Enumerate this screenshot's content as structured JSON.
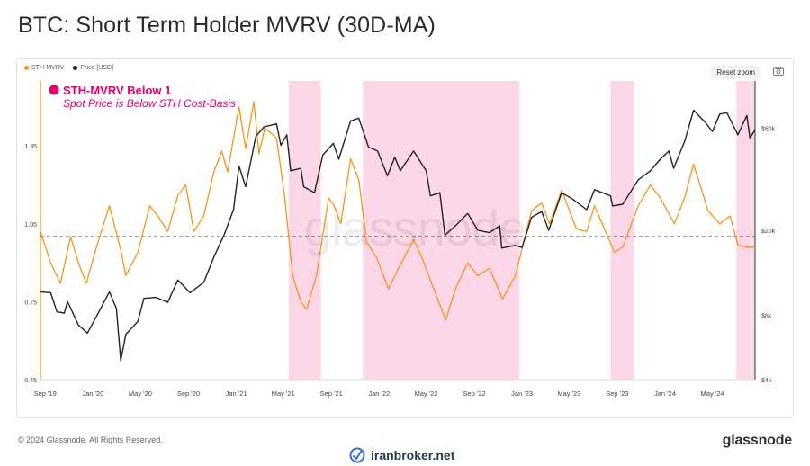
{
  "title": "BTC: Short Term Holder MVRV (30D-MA)",
  "legend": [
    {
      "label": "STH-MVRV",
      "color": "#f7931a"
    },
    {
      "label": "Price [USD]",
      "color": "#222222"
    }
  ],
  "toolbar": {
    "reset_zoom": "Reset zoom"
  },
  "annotation": {
    "title": "STH-MVRV Below 1",
    "subtitle": "Spot Price is Below STH Cost-Basis",
    "color": "#e6006e"
  },
  "watermark": "glassnode",
  "footer": {
    "copyright": "© 2024 Glassnode. All Rights Reserved.",
    "brand": "glassnode",
    "site": "iranbroker.net"
  },
  "chart_data": {
    "type": "line",
    "x_ticks": [
      "Sep '19",
      "Jan '20",
      "May '20",
      "Sep '20",
      "Jan '21",
      "May '21",
      "Sep '21",
      "Jan '22",
      "May '22",
      "Sep '22",
      "Jan '23",
      "May '23",
      "Sep '23",
      "Jan '24",
      "May '24"
    ],
    "x_range": [
      "2019-08-20",
      "2024-08-18"
    ],
    "left_axis": {
      "ticks": [
        0.45,
        0.75,
        1.05,
        1.35
      ],
      "range": [
        0.45,
        1.6
      ]
    },
    "right_axis": {
      "ticks": [
        "$4k",
        "$8k",
        "$20k",
        "$60k"
      ],
      "tick_values": [
        4000,
        8000,
        20000,
        60000
      ],
      "scale": "log",
      "range": [
        4000,
        100000
      ]
    },
    "reference_line": {
      "y": 1.0,
      "style": "dashed"
    },
    "shaded_regions": [
      [
        "2021-05-15",
        "2021-08-05"
      ],
      [
        "2021-11-20",
        "2022-12-25"
      ],
      [
        "2023-08-15",
        "2023-10-15"
      ],
      [
        "2024-07-01",
        "2024-08-18"
      ]
    ],
    "series": [
      {
        "name": "STH-MVRV",
        "axis": "left",
        "color": "#f7931a",
        "points": [
          [
            "2019-08-20",
            1.02
          ],
          [
            "2019-09-15",
            0.9
          ],
          [
            "2019-10-10",
            0.82
          ],
          [
            "2019-11-05",
            1.0
          ],
          [
            "2019-11-25",
            0.9
          ],
          [
            "2019-12-15",
            0.82
          ],
          [
            "2020-01-10",
            0.96
          ],
          [
            "2020-02-12",
            1.12
          ],
          [
            "2020-03-12",
            0.95
          ],
          [
            "2020-03-25",
            0.85
          ],
          [
            "2020-04-25",
            0.94
          ],
          [
            "2020-05-25",
            1.12
          ],
          [
            "2020-06-15",
            1.08
          ],
          [
            "2020-07-10",
            1.02
          ],
          [
            "2020-08-05",
            1.16
          ],
          [
            "2020-08-25",
            1.2
          ],
          [
            "2020-09-15",
            1.02
          ],
          [
            "2020-10-10",
            1.08
          ],
          [
            "2020-11-05",
            1.25
          ],
          [
            "2020-11-25",
            1.33
          ],
          [
            "2020-12-10",
            1.25
          ],
          [
            "2021-01-08",
            1.5
          ],
          [
            "2021-01-25",
            1.34
          ],
          [
            "2021-02-15",
            1.52
          ],
          [
            "2021-02-28",
            1.32
          ],
          [
            "2021-03-15",
            1.42
          ],
          [
            "2021-04-14",
            1.38
          ],
          [
            "2021-05-05",
            1.15
          ],
          [
            "2021-05-25",
            0.85
          ],
          [
            "2021-06-15",
            0.75
          ],
          [
            "2021-06-30",
            0.72
          ],
          [
            "2021-07-25",
            0.85
          ],
          [
            "2021-08-25",
            1.15
          ],
          [
            "2021-09-08",
            1.12
          ],
          [
            "2021-09-25",
            1.05
          ],
          [
            "2021-10-20",
            1.3
          ],
          [
            "2021-11-10",
            1.22
          ],
          [
            "2021-11-30",
            0.98
          ],
          [
            "2021-12-25",
            0.92
          ],
          [
            "2022-01-25",
            0.8
          ],
          [
            "2022-02-20",
            0.88
          ],
          [
            "2022-03-30",
            0.99
          ],
          [
            "2022-04-20",
            0.92
          ],
          [
            "2022-05-15",
            0.82
          ],
          [
            "2022-06-20",
            0.68
          ],
          [
            "2022-07-15",
            0.8
          ],
          [
            "2022-08-15",
            0.9
          ],
          [
            "2022-09-10",
            0.85
          ],
          [
            "2022-10-10",
            0.88
          ],
          [
            "2022-11-12",
            0.76
          ],
          [
            "2022-12-15",
            0.85
          ],
          [
            "2023-01-25",
            1.1
          ],
          [
            "2023-02-20",
            1.13
          ],
          [
            "2023-03-12",
            1.05
          ],
          [
            "2023-04-12",
            1.18
          ],
          [
            "2023-05-20",
            1.03
          ],
          [
            "2023-06-15",
            1.02
          ],
          [
            "2023-07-05",
            1.12
          ],
          [
            "2023-07-25",
            1.05
          ],
          [
            "2023-08-25",
            0.94
          ],
          [
            "2023-09-15",
            0.96
          ],
          [
            "2023-10-25",
            1.12
          ],
          [
            "2023-11-25",
            1.2
          ],
          [
            "2023-12-20",
            1.15
          ],
          [
            "2024-01-25",
            1.05
          ],
          [
            "2024-02-20",
            1.15
          ],
          [
            "2024-03-14",
            1.28
          ],
          [
            "2024-04-20",
            1.1
          ],
          [
            "2024-05-20",
            1.05
          ],
          [
            "2024-06-15",
            1.08
          ],
          [
            "2024-07-05",
            0.97
          ],
          [
            "2024-07-25",
            0.96
          ],
          [
            "2024-08-18",
            0.96
          ]
        ]
      },
      {
        "name": "Price [USD]",
        "axis": "right",
        "color": "#222222",
        "points": [
          [
            "2019-08-20",
            10300
          ],
          [
            "2019-09-15",
            10200
          ],
          [
            "2019-10-01",
            8300
          ],
          [
            "2019-10-20",
            8200
          ],
          [
            "2019-10-28",
            9300
          ],
          [
            "2019-11-25",
            7200
          ],
          [
            "2019-12-18",
            6600
          ],
          [
            "2020-01-10",
            7900
          ],
          [
            "2020-02-12",
            10300
          ],
          [
            "2020-03-01",
            8600
          ],
          [
            "2020-03-12",
            4900
          ],
          [
            "2020-03-25",
            6500
          ],
          [
            "2020-04-25",
            7500
          ],
          [
            "2020-05-10",
            9600
          ],
          [
            "2020-06-10",
            9700
          ],
          [
            "2020-07-10",
            9200
          ],
          [
            "2020-08-05",
            11700
          ],
          [
            "2020-09-05",
            10200
          ],
          [
            "2020-10-10",
            11400
          ],
          [
            "2020-11-05",
            15000
          ],
          [
            "2020-12-01",
            19000
          ],
          [
            "2020-12-25",
            25000
          ],
          [
            "2021-01-08",
            40000
          ],
          [
            "2021-01-25",
            32000
          ],
          [
            "2021-02-20",
            55000
          ],
          [
            "2021-03-13",
            61000
          ],
          [
            "2021-04-14",
            63000
          ],
          [
            "2021-04-25",
            50000
          ],
          [
            "2021-05-10",
            56000
          ],
          [
            "2021-05-20",
            38000
          ],
          [
            "2021-06-15",
            39000
          ],
          [
            "2021-06-22",
            32000
          ],
          [
            "2021-07-20",
            30000
          ],
          [
            "2021-08-10",
            45000
          ],
          [
            "2021-09-06",
            51000
          ],
          [
            "2021-09-20",
            43000
          ],
          [
            "2021-10-20",
            65000
          ],
          [
            "2021-11-10",
            67000
          ],
          [
            "2021-12-05",
            49000
          ],
          [
            "2021-12-28",
            47000
          ],
          [
            "2022-01-22",
            36000
          ],
          [
            "2022-02-10",
            44000
          ],
          [
            "2022-02-24",
            38000
          ],
          [
            "2022-03-30",
            47000
          ],
          [
            "2022-05-01",
            38000
          ],
          [
            "2022-05-12",
            29000
          ],
          [
            "2022-06-05",
            30000
          ],
          [
            "2022-06-18",
            19000
          ],
          [
            "2022-07-15",
            21000
          ],
          [
            "2022-08-15",
            24000
          ],
          [
            "2022-09-10",
            20000
          ],
          [
            "2022-10-10",
            19500
          ],
          [
            "2022-11-05",
            21000
          ],
          [
            "2022-11-10",
            16500
          ],
          [
            "2022-12-15",
            17000
          ],
          [
            "2023-01-01",
            16600
          ],
          [
            "2023-01-25",
            23000
          ],
          [
            "2023-02-20",
            24500
          ],
          [
            "2023-03-10",
            20000
          ],
          [
            "2023-04-12",
            30000
          ],
          [
            "2023-05-10",
            28000
          ],
          [
            "2023-06-15",
            25000
          ],
          [
            "2023-07-05",
            31000
          ],
          [
            "2023-08-15",
            29000
          ],
          [
            "2023-08-20",
            26000
          ],
          [
            "2023-09-15",
            26500
          ],
          [
            "2023-10-25",
            34500
          ],
          [
            "2023-11-25",
            38000
          ],
          [
            "2023-12-20",
            43000
          ],
          [
            "2024-01-11",
            47000
          ],
          [
            "2024-01-23",
            39000
          ],
          [
            "2024-02-20",
            52000
          ],
          [
            "2024-03-14",
            73000
          ],
          [
            "2024-04-13",
            64000
          ],
          [
            "2024-05-01",
            58000
          ],
          [
            "2024-05-20",
            70000
          ],
          [
            "2024-06-07",
            71000
          ],
          [
            "2024-06-25",
            61000
          ],
          [
            "2024-07-05",
            56000
          ],
          [
            "2024-07-28",
            69000
          ],
          [
            "2024-08-05",
            54000
          ],
          [
            "2024-08-18",
            59000
          ]
        ]
      }
    ]
  }
}
